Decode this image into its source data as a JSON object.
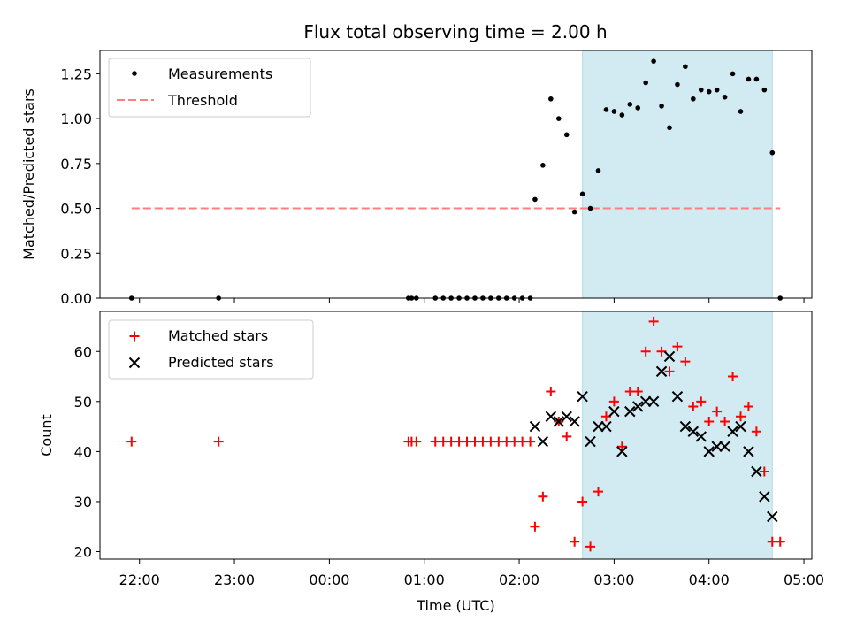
{
  "title": "Flux total observing time = 2.00 h",
  "colors": {
    "measurements": "#000000",
    "threshold": "#ff7f7f",
    "matched": "#ff0000",
    "predicted": "#000000",
    "shade": "#add8e6"
  },
  "chart_data": [
    {
      "type": "scatter",
      "ylabel": "Matched/Predicted stars",
      "ylim": [
        0,
        1.38
      ],
      "yticks": [
        0,
        0.25,
        0.5,
        0.75,
        1.0,
        1.25
      ],
      "ytick_labels": [
        "0.00",
        "0.25",
        "0.50",
        "0.75",
        "1.00",
        "1.25"
      ],
      "legend": {
        "position": "top-left",
        "entries": [
          "Measurements",
          "Threshold"
        ]
      },
      "shaded_region": [
        "02:40",
        "04:40"
      ],
      "threshold": {
        "name": "Threshold",
        "value": 0.5,
        "x_range": [
          "21:55",
          "04:45"
        ]
      },
      "series": [
        {
          "name": "Measurements",
          "x": [
            "21:55",
            "22:50",
            "00:50",
            "00:52",
            "00:55",
            "01:07",
            "01:12",
            "01:17",
            "01:22",
            "01:27",
            "01:32",
            "01:37",
            "01:42",
            "01:47",
            "01:52",
            "01:57",
            "02:02",
            "02:07",
            "02:10",
            "02:15",
            "02:20",
            "02:25",
            "02:30",
            "02:35",
            "02:40",
            "02:45",
            "02:50",
            "02:55",
            "03:00",
            "03:05",
            "03:10",
            "03:15",
            "03:20",
            "03:25",
            "03:30",
            "03:35",
            "03:40",
            "03:45",
            "03:50",
            "03:55",
            "04:00",
            "04:05",
            "04:10",
            "04:15",
            "04:20",
            "04:25",
            "04:30",
            "04:35",
            "04:40",
            "04:45"
          ],
          "y": [
            0,
            0,
            0,
            0,
            0,
            0,
            0,
            0,
            0,
            0,
            0,
            0,
            0,
            0,
            0,
            0,
            0,
            0,
            0.55,
            0.74,
            1.11,
            1.0,
            0.91,
            0.48,
            0.58,
            0.5,
            0.71,
            1.05,
            1.04,
            1.02,
            1.08,
            1.06,
            1.2,
            1.32,
            1.07,
            0.95,
            1.19,
            1.29,
            1.11,
            1.16,
            1.15,
            1.16,
            1.12,
            1.25,
            1.04,
            1.22,
            1.22,
            1.16,
            0.81,
            0
          ]
        }
      ]
    },
    {
      "type": "scatter",
      "xlabel": "Time (UTC)",
      "ylabel": "Count",
      "ylim": [
        18.5,
        68
      ],
      "yticks": [
        20,
        30,
        40,
        50,
        60
      ],
      "ytick_labels": [
        "20",
        "30",
        "40",
        "50",
        "60"
      ],
      "xticks": [
        "22:00",
        "23:00",
        "00:00",
        "01:00",
        "02:00",
        "03:00",
        "04:00",
        "05:00"
      ],
      "xlim": [
        "21:35",
        "05:05"
      ],
      "legend": {
        "position": "top-left",
        "entries": [
          "Matched stars",
          "Predicted stars"
        ]
      },
      "shaded_region": [
        "02:40",
        "04:40"
      ],
      "series": [
        {
          "name": "Matched stars",
          "x": [
            "21:55",
            "22:50",
            "00:50",
            "00:52",
            "00:55",
            "01:07",
            "01:12",
            "01:17",
            "01:22",
            "01:27",
            "01:32",
            "01:37",
            "01:42",
            "01:47",
            "01:52",
            "01:57",
            "02:02",
            "02:07",
            "02:10",
            "02:15",
            "02:20",
            "02:25",
            "02:30",
            "02:35",
            "02:40",
            "02:45",
            "02:50",
            "02:55",
            "03:00",
            "03:05",
            "03:10",
            "03:15",
            "03:20",
            "03:25",
            "03:30",
            "03:35",
            "03:40",
            "03:45",
            "03:50",
            "03:55",
            "04:00",
            "04:05",
            "04:10",
            "04:15",
            "04:20",
            "04:25",
            "04:30",
            "04:35",
            "04:40",
            "04:45"
          ],
          "y": [
            42,
            42,
            42,
            42,
            42,
            42,
            42,
            42,
            42,
            42,
            42,
            42,
            42,
            42,
            42,
            42,
            42,
            42,
            25,
            31,
            52,
            46,
            43,
            22,
            30,
            21,
            32,
            47,
            50,
            41,
            52,
            52,
            60,
            66,
            60,
            56,
            61,
            58,
            49,
            50,
            46,
            48,
            46,
            55,
            47,
            49,
            44,
            36,
            22,
            22
          ]
        },
        {
          "name": "Predicted stars",
          "x": [
            "02:10",
            "02:15",
            "02:20",
            "02:25",
            "02:30",
            "02:35",
            "02:40",
            "02:45",
            "02:50",
            "02:55",
            "03:00",
            "03:05",
            "03:10",
            "03:15",
            "03:20",
            "03:25",
            "03:30",
            "03:35",
            "03:40",
            "03:45",
            "03:50",
            "03:55",
            "04:00",
            "04:05",
            "04:10",
            "04:15",
            "04:20",
            "04:25",
            "04:30",
            "04:35",
            "04:40"
          ],
          "y": [
            45,
            42,
            47,
            46,
            47,
            46,
            51,
            42,
            45,
            45,
            48,
            40,
            48,
            49,
            50,
            50,
            56,
            59,
            51,
            45,
            44,
            43,
            40,
            41,
            41,
            44,
            45,
            40,
            36,
            31,
            27
          ]
        }
      ]
    }
  ]
}
